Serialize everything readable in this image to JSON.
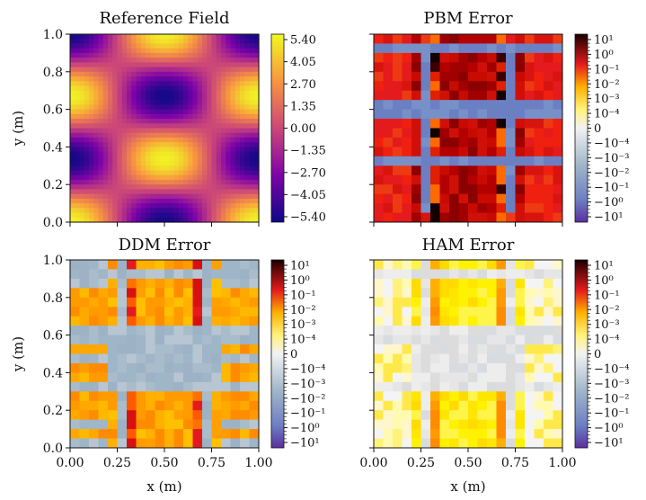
{
  "chart_data": [
    {
      "type": "heatmap",
      "title": "Reference Field",
      "xlabel": "",
      "ylabel": "y (m)",
      "xlim": [
        0,
        1
      ],
      "ylim": [
        0,
        1
      ],
      "xticks": [
        "0.00",
        "0.25",
        "0.50",
        "0.75",
        "1.00"
      ],
      "yticks": [
        "0.0",
        "0.2",
        "0.4",
        "0.6",
        "0.8",
        "1.0"
      ],
      "show_xtick_labels": false,
      "show_ytick_labels": true,
      "colormap": "plasma",
      "value_range": [
        -6.0,
        6.0
      ],
      "field": "5.8 * cos(2*pi*x) * cos(2*pi*y / 0.67)",
      "colorbar": {
        "scale": "linear",
        "ticks": [
          "5.40",
          "4.05",
          "2.70",
          "1.35",
          "0.00",
          "−1.35",
          "−2.70",
          "−4.05",
          "−5.40"
        ]
      }
    },
    {
      "type": "heatmap",
      "title": "PBM Error",
      "xlabel": "",
      "ylabel": "",
      "xlim": [
        0,
        1
      ],
      "ylim": [
        0,
        1
      ],
      "show_xtick_labels": false,
      "show_ytick_labels": false,
      "colormap": "symlog-hot",
      "pattern": "hot",
      "colorbar": {
        "scale": "symlog",
        "ticks": [
          "10¹",
          "10⁰",
          "10⁻¹",
          "10⁻²",
          "10⁻³",
          "10⁻⁴",
          "0",
          "−10⁻⁴",
          "−10⁻³",
          "−10⁻²",
          "−10⁻¹",
          "−10⁰",
          "−10¹"
        ]
      }
    },
    {
      "type": "heatmap",
      "title": "DDM Error",
      "xlabel": "x (m)",
      "ylabel": "y (m)",
      "xlim": [
        0,
        1
      ],
      "ylim": [
        0,
        1
      ],
      "xticks": [
        "0.00",
        "0.25",
        "0.50",
        "0.75",
        "1.00"
      ],
      "yticks": [
        "0.0",
        "0.2",
        "0.4",
        "0.6",
        "0.8",
        "1.0"
      ],
      "show_xtick_labels": true,
      "show_ytick_labels": true,
      "colormap": "symlog-hot",
      "pattern": "orange",
      "colorbar": {
        "scale": "symlog",
        "ticks": [
          "10¹",
          "10⁰",
          "10⁻¹",
          "10⁻²",
          "10⁻³",
          "10⁻⁴",
          "0",
          "−10⁻⁴",
          "−10⁻³",
          "−10⁻²",
          "−10⁻¹",
          "−10⁰",
          "−10¹"
        ]
      }
    },
    {
      "type": "heatmap",
      "title": "HAM Error",
      "xlabel": "x (m)",
      "ylabel": "",
      "xlim": [
        0,
        1
      ],
      "ylim": [
        0,
        1
      ],
      "xticks": [
        "0.00",
        "0.25",
        "0.50",
        "0.75",
        "1.00"
      ],
      "show_xtick_labels": true,
      "show_ytick_labels": false,
      "colormap": "symlog-hot",
      "pattern": "yellow",
      "colorbar": {
        "scale": "symlog",
        "ticks": [
          "10¹",
          "10⁰",
          "10⁻¹",
          "10⁻²",
          "10⁻³",
          "10⁻⁴",
          "0",
          "−10⁻⁴",
          "−10⁻³",
          "−10⁻²",
          "−10⁻¹",
          "−10⁰",
          "−10¹"
        ]
      }
    }
  ],
  "colors": {
    "hot_dark": "#8b0000",
    "hot_red": "#e41a1c",
    "hot_orange": "#ff8c00",
    "hot_yellow": "#ffe600",
    "neutral_light": "#f2f2f2",
    "blue_grey": "#9fb5c8",
    "slate_blue": "#6d7fc4",
    "violet": "#7a4fc0"
  }
}
